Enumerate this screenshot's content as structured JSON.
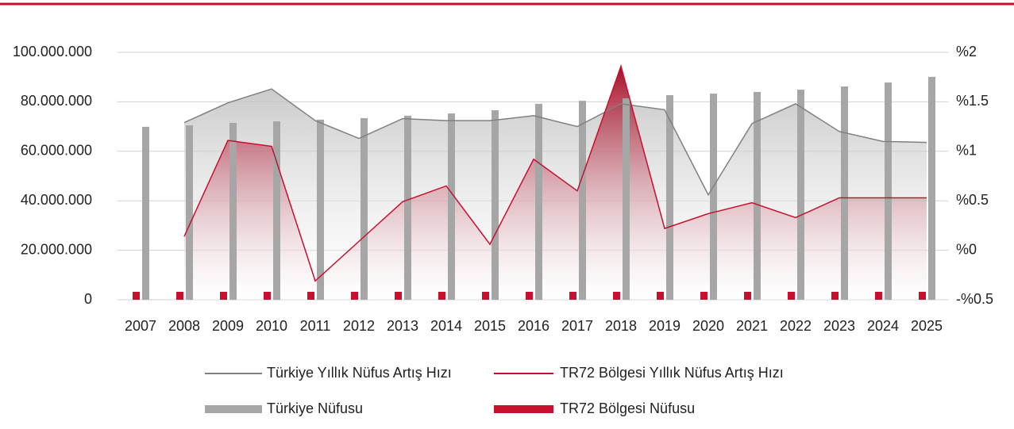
{
  "chart_data": {
    "type": "combo",
    "categories": [
      "2007",
      "2008",
      "2009",
      "2010",
      "2011",
      "2012",
      "2013",
      "2014",
      "2015",
      "2016",
      "2017",
      "2018",
      "2019",
      "2020",
      "2021",
      "2022",
      "2023",
      "2024",
      "2025"
    ],
    "ylim": [
      0,
      100000000
    ],
    "yticks": [
      0,
      {
        "value": 20000000,
        "label": "20.000.000"
      },
      {
        "value": 40000000,
        "label": "40.000.000"
      },
      {
        "value": 60000000,
        "label": "60.000.000"
      },
      {
        "value": 80000000,
        "label": "80.000.000"
      },
      {
        "value": 100000000,
        "label": "100.000.000"
      }
    ],
    "y2lim": [
      -0.5,
      2
    ],
    "y2ticks": [
      {
        "value": -0.5,
        "label": "-%0.5"
      },
      {
        "value": 0,
        "label": "%0"
      },
      {
        "value": 0.5,
        "label": "%0.5"
      },
      {
        "value": 1,
        "label": "%1"
      },
      {
        "value": 1.5,
        "label": "%1.5"
      },
      {
        "value": 2,
        "label": "%2"
      }
    ],
    "grid": true,
    "series": [
      {
        "name": "Türkiye Yıllık Nüfus Artış Hızı",
        "type": "line",
        "axis": "y2",
        "color": "#808080",
        "values": [
          null,
          1.29,
          1.49,
          1.63,
          1.31,
          1.13,
          1.33,
          1.31,
          1.31,
          1.36,
          1.25,
          1.48,
          1.42,
          0.56,
          1.28,
          1.48,
          1.2,
          1.1,
          1.09
        ]
      },
      {
        "name": "TR72 Bölgesi Yıllık Nüfus Artış Hızı",
        "type": "line",
        "axis": "y2",
        "color": "#c8102e",
        "values": [
          null,
          0.14,
          1.11,
          1.05,
          -0.31,
          0.09,
          0.49,
          0.65,
          0.06,
          0.92,
          0.6,
          1.86,
          0.22,
          0.37,
          0.48,
          0.33,
          0.53,
          0.53,
          0.53
        ]
      },
      {
        "name": "Türkiye Nüfusu",
        "type": "bar",
        "axis": "y",
        "color": "#a6a6a6",
        "values": [
          69900000,
          70500000,
          71500000,
          72100000,
          72800000,
          73400000,
          74400000,
          75300000,
          76600000,
          79200000,
          80400000,
          81400000,
          82700000,
          83300000,
          84000000,
          84900000,
          86200000,
          87800000,
          90100000
        ]
      },
      {
        "name": "TR72 Bölgesi Nüfusu",
        "type": "bar",
        "axis": "y",
        "color": "#c8102e",
        "values": [
          3200000,
          3200000,
          3200000,
          3200000,
          3200000,
          3200000,
          3200000,
          3200000,
          3200000,
          3200000,
          3200000,
          3200000,
          3200000,
          3200000,
          3200000,
          3200000,
          3200000,
          3200000,
          3200000
        ]
      }
    ]
  }
}
